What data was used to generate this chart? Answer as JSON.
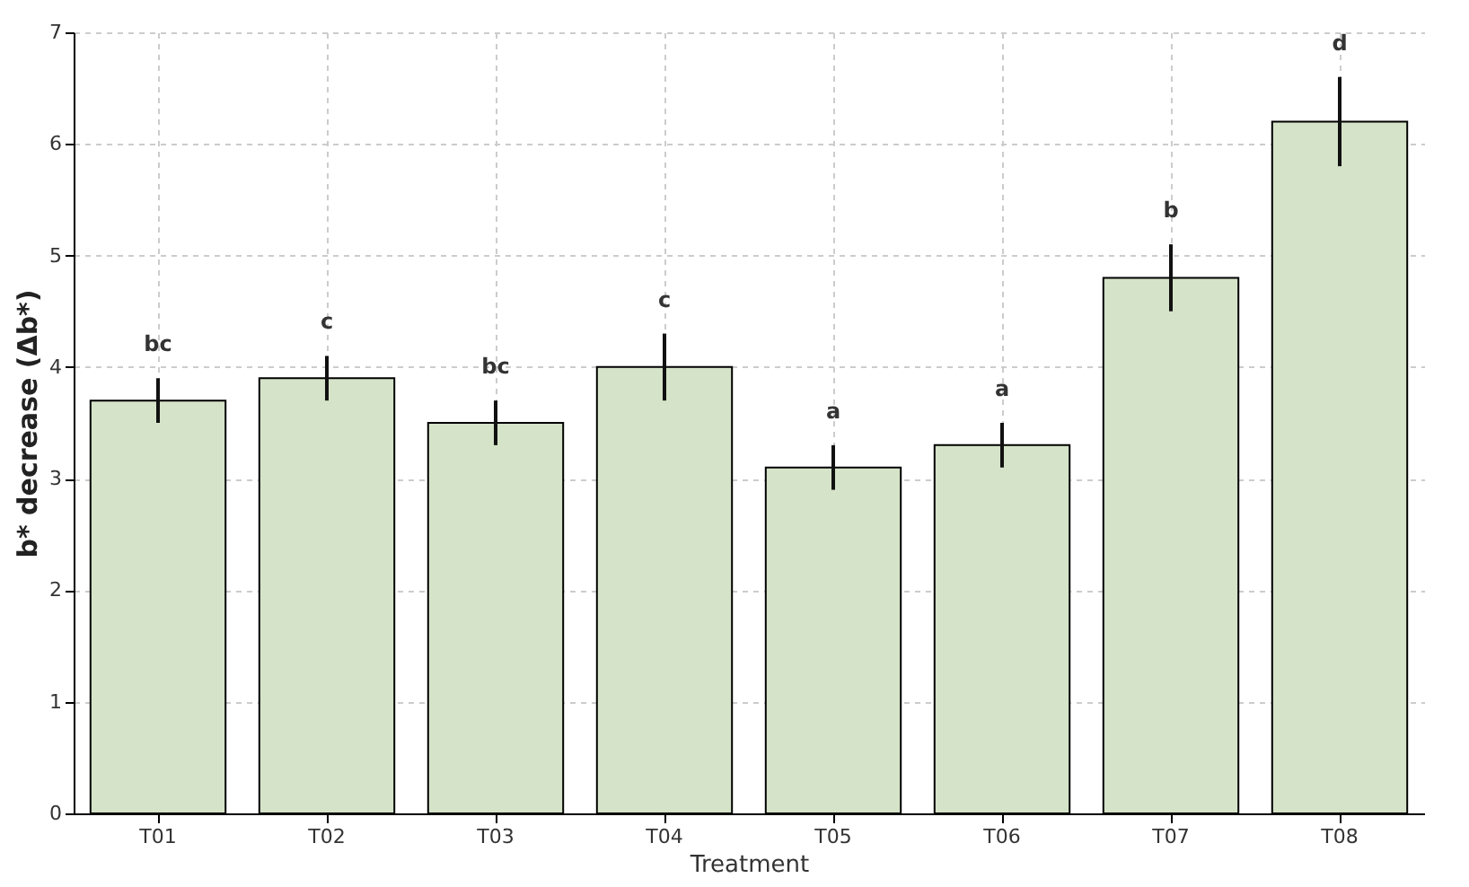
{
  "chart_data": {
    "type": "bar",
    "xlabel": "Treatment",
    "ylabel": "b* decrease (Δb*)",
    "categories": [
      "T01",
      "T02",
      "T03",
      "T04",
      "T05",
      "T06",
      "T07",
      "T08"
    ],
    "values": [
      3.7,
      3.9,
      3.5,
      4.0,
      3.1,
      3.3,
      4.8,
      6.2
    ],
    "errors": [
      0.2,
      0.2,
      0.2,
      0.3,
      0.2,
      0.2,
      0.3,
      0.4
    ],
    "color": "#d5e3c8",
    "ylim": [
      0,
      7
    ],
    "yticks": [
      0,
      1,
      2,
      3,
      4,
      5,
      6,
      7
    ],
    "grid": true,
    "annotations": [
      "bc",
      "c",
      "bc",
      "c",
      "a",
      "a",
      "b",
      "d"
    ]
  }
}
